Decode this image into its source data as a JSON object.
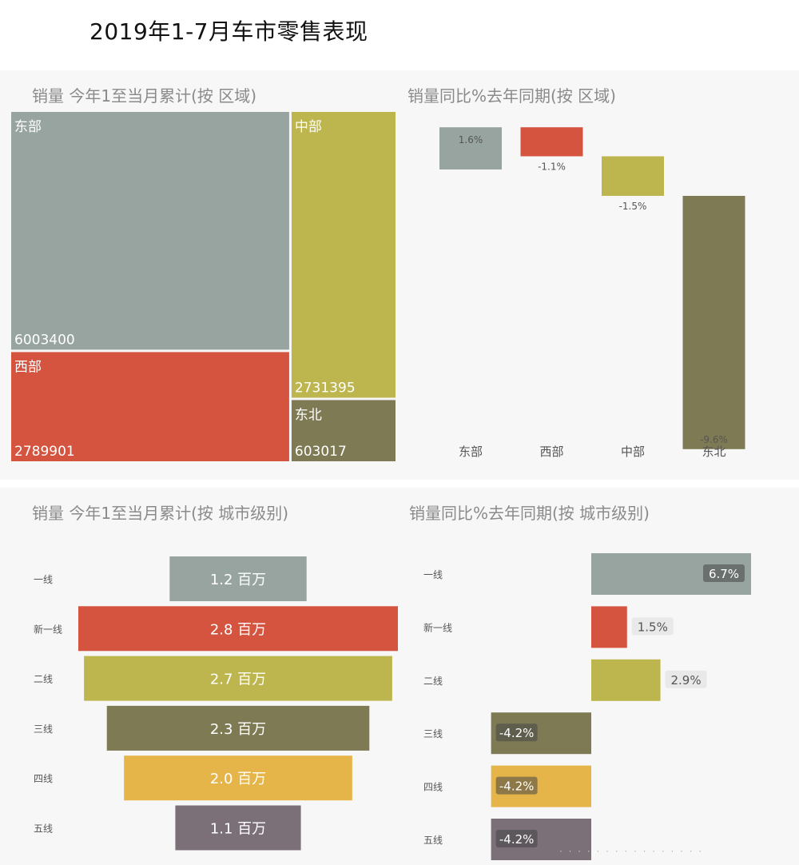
{
  "page_title": "2019年1-7月车市零售表现",
  "chart_data": [
    {
      "type": "treemap",
      "title": "销量 今年1至当月累计(按 区域)",
      "items": [
        {
          "label": "东部",
          "value": 6003400,
          "value_text": "6003400",
          "color": "#97a4a0"
        },
        {
          "label": "西部",
          "value": 2789901,
          "value_text": "2789901",
          "color": "#d45440"
        },
        {
          "label": "中部",
          "value": 2731395,
          "value_text": "2731395",
          "color": "#bdb54d"
        },
        {
          "label": "东北",
          "value": 603017,
          "value_text": "603017",
          "color": "#7e7a54"
        }
      ]
    },
    {
      "type": "waterfall",
      "title": "销量同比%去年同期(按 区域)",
      "categories": [
        "东部",
        "西部",
        "中部",
        "东北"
      ],
      "values": [
        1.6,
        -1.1,
        -1.5,
        -9.6
      ],
      "labels": [
        "1.6%",
        "-1.1%",
        "-1.5%",
        "-9.6%"
      ],
      "colors": [
        "#97a4a0",
        "#d45440",
        "#bdb54d",
        "#7e7a54"
      ]
    },
    {
      "type": "funnel",
      "title": "销量 今年1至当月累计(按 城市级别)",
      "categories": [
        "一线",
        "新一线",
        "二线",
        "三线",
        "四线",
        "五线"
      ],
      "values": [
        1.2,
        2.8,
        2.7,
        2.3,
        2.0,
        1.1
      ],
      "labels": [
        "1.2 百万",
        "2.8 百万",
        "2.7 百万",
        "2.3 百万",
        "2.0 百万",
        "1.1 百万"
      ],
      "unit": "百万",
      "colors": [
        "#97a4a0",
        "#d45440",
        "#bdb54d",
        "#7e7a54",
        "#e6b54a",
        "#7b7078"
      ]
    },
    {
      "type": "bar",
      "orientation": "horizontal",
      "title": "销量同比%去年同期(按 城市级别)",
      "categories": [
        "一线",
        "新一线",
        "二线",
        "三线",
        "四线",
        "五线"
      ],
      "values": [
        6.7,
        1.5,
        2.9,
        -4.2,
        -4.2,
        -4.2
      ],
      "labels": [
        "6.7%",
        "1.5%",
        "2.9%",
        "-4.2%",
        "-4.2%",
        "-4.2%"
      ],
      "colors": [
        "#97a4a0",
        "#d45440",
        "#bdb54d",
        "#7e7a54",
        "#e6b54a",
        "#7b7078"
      ]
    }
  ]
}
